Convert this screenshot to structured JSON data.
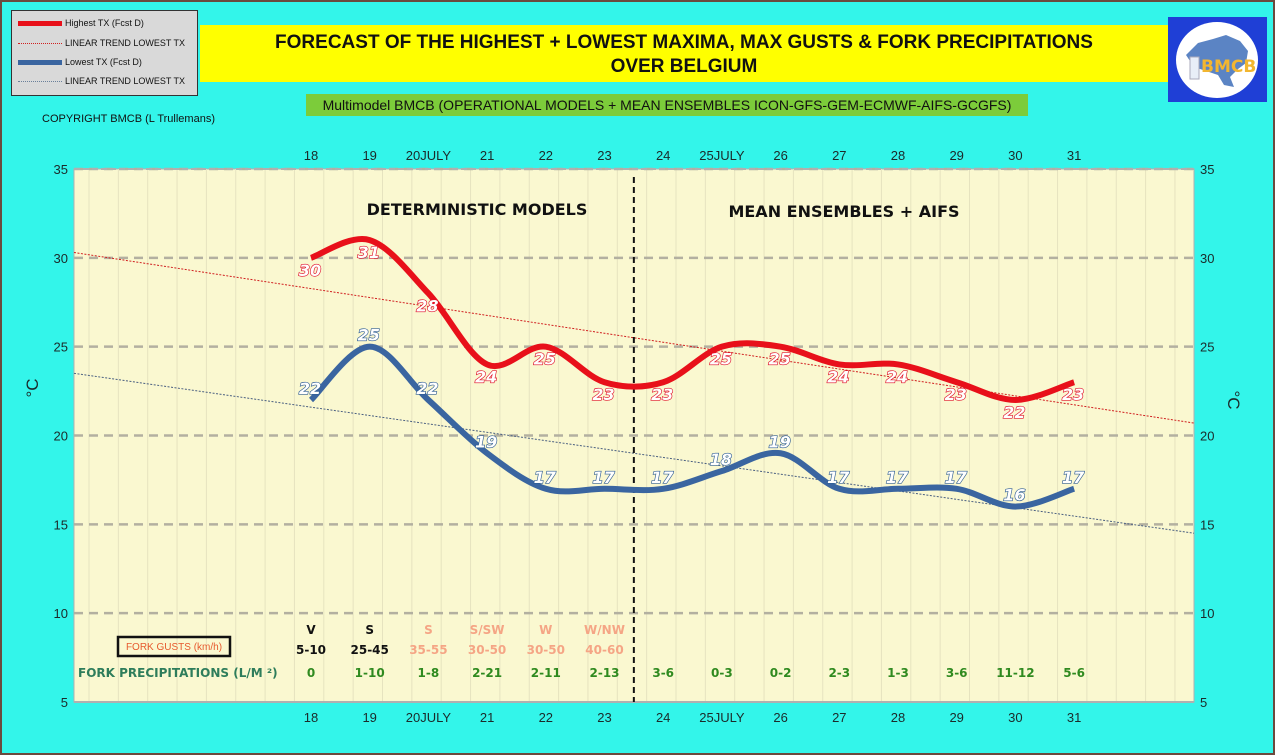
{
  "legend": {
    "items": [
      {
        "label": "Highest TX (Fcst D)",
        "style": "thick",
        "color": "#e8101a"
      },
      {
        "label": "LINEAR TREND LOWEST  TX",
        "style": "dotted",
        "color": "#d02020"
      },
      {
        "label": "Lowest TX (Fcst D)",
        "style": "thick",
        "color": "#3a65a0"
      },
      {
        "label": "LINEAR TREND LOWEST TX",
        "style": "dotted",
        "color": "#6a7f9a"
      }
    ]
  },
  "header": {
    "title_line1": "FORECAST OF THE HIGHEST + LOWEST MAXIMA, MAX GUSTS & FORK PRECIPITATIONS",
    "title_line2": "OVER BELGIUM",
    "subtitle": "Multimodel BMCB (OPERATIONAL MODELS + MEAN ENSEMBLES  ICON-GFS-GEM-ECMWF-AIFS-GCGFS)",
    "copyright": "COPYRIGHT BMCB (L Trullemans)",
    "logo_text": "BMCB"
  },
  "colors": {
    "background": "#33f5ea",
    "plot_background": "#faf8d0",
    "highest": "#e8101a",
    "lowest": "#3a65a0",
    "gust_past": "#111111",
    "gust_future": "#f5a585",
    "precip": "#2f8a1f"
  },
  "chart_data": {
    "type": "line",
    "title": "FORECAST OF THE HIGHEST + LOWEST MAXIMA, MAX GUSTS & FORK PRECIPITATIONS OVER BELGIUM",
    "categories": [
      "18",
      "19",
      "20JULY",
      "21",
      "22",
      "23",
      "24",
      "25JULY",
      "26",
      "27",
      "28",
      "29",
      "30",
      "31"
    ],
    "xlabel": "",
    "ylabel": "°C",
    "ylim": [
      5,
      35
    ],
    "yticks": [
      5,
      10,
      15,
      20,
      25,
      30,
      35
    ],
    "grid": true,
    "legend_position": "top-left",
    "series": [
      {
        "name": "Highest TX (Fcst D)",
        "values": [
          30,
          31,
          28,
          24,
          25,
          23,
          23,
          25,
          25,
          24,
          24,
          23,
          22,
          23
        ]
      },
      {
        "name": "Lowest TX (Fcst D)",
        "values": [
          22,
          25,
          22,
          19,
          17,
          17,
          17,
          18,
          19,
          17,
          17,
          17,
          16,
          17
        ]
      }
    ],
    "trend_lines": [
      {
        "name": "LINEAR TREND LOWEST  TX",
        "of": "Highest TX (Fcst D)",
        "start": 30.3,
        "end": 20.7
      },
      {
        "name": "LINEAR TREND LOWEST TX",
        "of": "Lowest TX (Fcst D)",
        "start": 23.5,
        "end": 14.5
      }
    ],
    "annotations": {
      "section_left": "DETERMINISTIC MODELS",
      "section_right": "MEAN ENSEMBLES + AIFS",
      "divider_between": [
        "23",
        "24"
      ]
    },
    "gusts": {
      "title": "FORK GUSTS (km/h)",
      "direction": [
        "V",
        "S",
        "S",
        "S/SW",
        "W",
        "W/NW"
      ],
      "speed": [
        "5-10",
        "25-45",
        "35-55",
        "30-50",
        "30-50",
        "40-60"
      ],
      "highlighted_count": 2
    },
    "precipitation": {
      "title": "FORK PRECIPITATIONS (L/M ²)",
      "values": [
        "0",
        "1-10",
        "1-8",
        "2-21",
        "2-11",
        "2-13",
        "3-6",
        "0-3",
        "0-2",
        "2-3",
        "1-3",
        "3-6",
        "11-12",
        "5-6"
      ]
    }
  }
}
